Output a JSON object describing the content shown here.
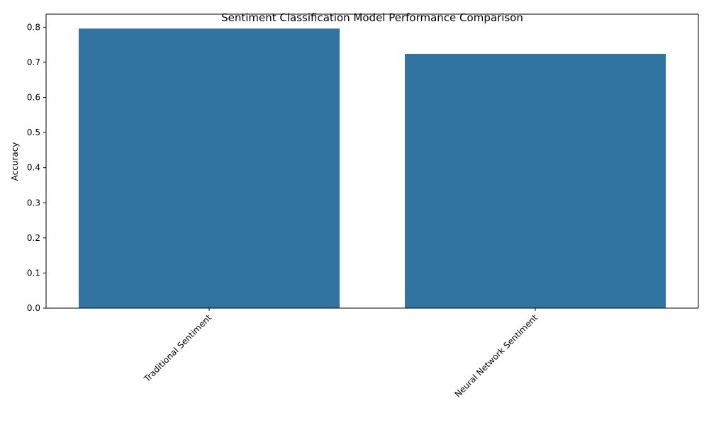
{
  "chart_data": {
    "type": "bar",
    "title": "Sentiment Classification Model Performance Comparison",
    "xlabel": "",
    "ylabel": "Accuracy",
    "categories": [
      "Traditional Sentiment",
      "Neural Network Sentiment"
    ],
    "values": [
      0.796,
      0.724
    ],
    "ylim": [
      0,
      0.837
    ],
    "yticks": [
      "0.0",
      "0.1",
      "0.2",
      "0.3",
      "0.4",
      "0.5",
      "0.6",
      "0.7",
      "0.8"
    ],
    "bar_color": "#3274a1",
    "grid": false,
    "legend": "none"
  }
}
